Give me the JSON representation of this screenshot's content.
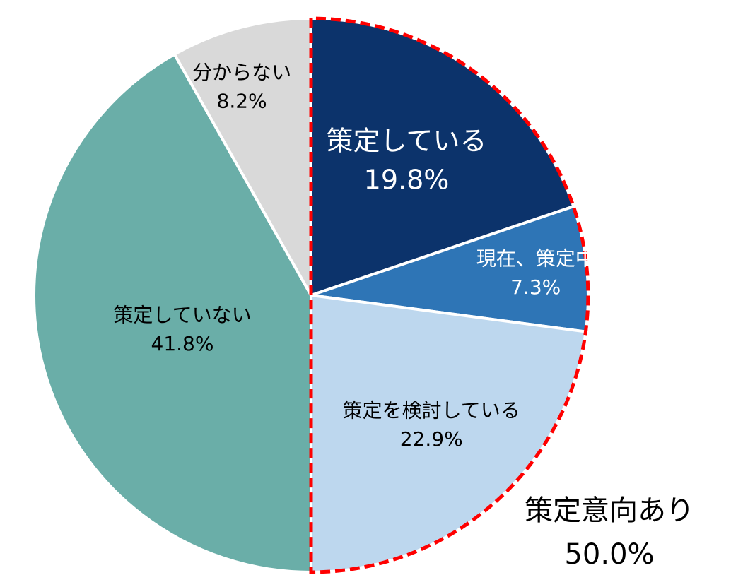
{
  "chart_data": {
    "type": "pie",
    "slices": [
      {
        "label": "策定している",
        "value": 19.8,
        "value_label": "19.8%",
        "color": "#0c336b",
        "text_color": "#ffffff"
      },
      {
        "label": "現在、策定中",
        "value": 7.3,
        "value_label": "7.3%",
        "color": "#2e75b6",
        "text_color": "#ffffff"
      },
      {
        "label": "策定を検討している",
        "value": 22.9,
        "value_label": "22.9%",
        "color": "#bdd7ee",
        "text_color": "#000000"
      },
      {
        "label": "策定していない",
        "value": 41.8,
        "value_label": "41.8%",
        "color": "#6aaea8",
        "text_color": "#000000"
      },
      {
        "label": "分からない",
        "value": 8.2,
        "value_label": "8.2%",
        "color": "#d9d9d9",
        "text_color": "#000000"
      }
    ],
    "group_highlight": {
      "label": "策定意向あり",
      "value_label": "50.0%",
      "slices": [
        0,
        1,
        2
      ],
      "border_color": "#ff0000"
    },
    "start": "12 o'clock",
    "direction": "clockwise"
  }
}
